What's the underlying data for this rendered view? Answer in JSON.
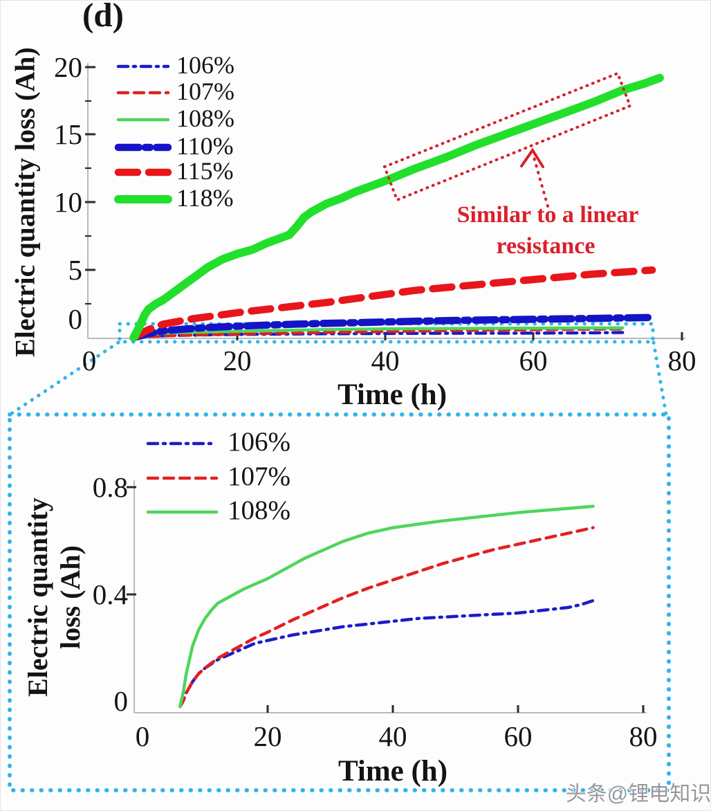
{
  "figure": {
    "panel_label": "(d)",
    "watermark": "头条@锂电知识",
    "watermark_color": "#97979b",
    "annotation": {
      "line1": "Similar to a linear",
      "line2": "resistance",
      "color": "#d9202a"
    },
    "colors": {
      "cyan_zoom_link": "#32b5e6",
      "annotation_red": "#d9202a",
      "axis_spine": "#b9b9bd",
      "tick_mark": "#2b2b2e",
      "text": "#141414"
    }
  },
  "chart_data": [
    {
      "id": "main",
      "type": "line",
      "xlabel": "Time (h)",
      "ylabel": "Electric quantity  loss (Ah)",
      "xlim": [
        0,
        80
      ],
      "ylim": [
        0,
        20
      ],
      "x_tick_labels": [
        "0",
        "20",
        "40",
        "60",
        "80"
      ],
      "y_tick_labels": [
        "20",
        "15",
        "10",
        "5",
        "0"
      ],
      "grid": false,
      "legend_position": "upper-left",
      "series": [
        {
          "name": "106%",
          "color": "#1b1bc8",
          "style": "dashdot",
          "weight": "thin",
          "points": [
            [
              6,
              0
            ],
            [
              6.5,
              0.02
            ],
            [
              7,
              0.05
            ],
            [
              8,
              0.09
            ],
            [
              9,
              0.12
            ],
            [
              10,
              0.14
            ],
            [
              12,
              0.17
            ],
            [
              14,
              0.19
            ],
            [
              16,
              0.21
            ],
            [
              18,
              0.23
            ],
            [
              20,
              0.24
            ],
            [
              24,
              0.26
            ],
            [
              28,
              0.275
            ],
            [
              32,
              0.29
            ],
            [
              36,
              0.3
            ],
            [
              40,
              0.31
            ],
            [
              44,
              0.32
            ],
            [
              48,
              0.325
            ],
            [
              52,
              0.33
            ],
            [
              56,
              0.335
            ],
            [
              60,
              0.34
            ],
            [
              64,
              0.35
            ],
            [
              68,
              0.36
            ],
            [
              72,
              0.385
            ]
          ]
        },
        {
          "name": "107%",
          "color": "#e2201f",
          "style": "dashed",
          "weight": "thin",
          "points": [
            [
              6,
              0
            ],
            [
              6.5,
              0.02
            ],
            [
              7,
              0.05
            ],
            [
              8,
              0.09
            ],
            [
              9,
              0.12
            ],
            [
              10,
              0.14
            ],
            [
              12,
              0.175
            ],
            [
              14,
              0.2
            ],
            [
              16,
              0.225
            ],
            [
              18,
              0.25
            ],
            [
              20,
              0.27
            ],
            [
              24,
              0.315
            ],
            [
              28,
              0.355
            ],
            [
              32,
              0.395
            ],
            [
              36,
              0.43
            ],
            [
              40,
              0.46
            ],
            [
              44,
              0.49
            ],
            [
              48,
              0.52
            ],
            [
              52,
              0.545
            ],
            [
              56,
              0.57
            ],
            [
              60,
              0.59
            ],
            [
              64,
              0.61
            ],
            [
              68,
              0.63
            ],
            [
              72,
              0.65
            ]
          ]
        },
        {
          "name": "108%",
          "color": "#4fd55c",
          "style": "solid",
          "weight": "thin",
          "points": [
            [
              6,
              0
            ],
            [
              6.5,
              0.05
            ],
            [
              7,
              0.12
            ],
            [
              8,
              0.22
            ],
            [
              9,
              0.28
            ],
            [
              10,
              0.32
            ],
            [
              12,
              0.375
            ],
            [
              14,
              0.4
            ],
            [
              16,
              0.425
            ],
            [
              18,
              0.445
            ],
            [
              20,
              0.465
            ],
            [
              24,
              0.515
            ],
            [
              28,
              0.56
            ],
            [
              32,
              0.6
            ],
            [
              36,
              0.63
            ],
            [
              40,
              0.65
            ],
            [
              44,
              0.663
            ],
            [
              48,
              0.675
            ],
            [
              52,
              0.685
            ],
            [
              56,
              0.695
            ],
            [
              60,
              0.705
            ],
            [
              64,
              0.713
            ],
            [
              68,
              0.72
            ],
            [
              72,
              0.728
            ]
          ]
        },
        {
          "name": "110%",
          "color": "#1414c6",
          "style": "dashdot",
          "weight": "thick",
          "points": [
            [
              6,
              0
            ],
            [
              7,
              0.15
            ],
            [
              8,
              0.3
            ],
            [
              10,
              0.5
            ],
            [
              12,
              0.6
            ],
            [
              14,
              0.68
            ],
            [
              16,
              0.75
            ],
            [
              18,
              0.8
            ],
            [
              20,
              0.85
            ],
            [
              24,
              0.93
            ],
            [
              28,
              1.0
            ],
            [
              32,
              1.06
            ],
            [
              36,
              1.11
            ],
            [
              40,
              1.16
            ],
            [
              44,
              1.21
            ],
            [
              48,
              1.26
            ],
            [
              52,
              1.3
            ],
            [
              56,
              1.33
            ],
            [
              60,
              1.36
            ],
            [
              64,
              1.39
            ],
            [
              68,
              1.42
            ],
            [
              72,
              1.46
            ],
            [
              76,
              1.5
            ]
          ]
        },
        {
          "name": "115%",
          "color": "#e8151b",
          "style": "dashed",
          "weight": "thick",
          "points": [
            [
              6,
              0
            ],
            [
              7,
              0.3
            ],
            [
              8,
              0.6
            ],
            [
              10,
              1.0
            ],
            [
              12,
              1.2
            ],
            [
              14,
              1.4
            ],
            [
              16,
              1.55
            ],
            [
              18,
              1.7
            ],
            [
              20,
              1.85
            ],
            [
              24,
              2.1
            ],
            [
              28,
              2.35
            ],
            [
              32,
              2.6
            ],
            [
              36,
              2.9
            ],
            [
              40,
              3.2
            ],
            [
              44,
              3.5
            ],
            [
              48,
              3.7
            ],
            [
              52,
              3.9
            ],
            [
              56,
              4.1
            ],
            [
              60,
              4.3
            ],
            [
              64,
              4.5
            ],
            [
              68,
              4.7
            ],
            [
              72,
              4.85
            ],
            [
              76,
              5.0
            ]
          ]
        },
        {
          "name": "118%",
          "color": "#22df2b",
          "style": "solid",
          "weight": "thick",
          "points": [
            [
              6,
              0
            ],
            [
              6.5,
              0.5
            ],
            [
              7,
              1.1
            ],
            [
              7.5,
              1.7
            ],
            [
              8,
              2.1
            ],
            [
              9,
              2.5
            ],
            [
              10,
              2.8
            ],
            [
              12,
              3.6
            ],
            [
              14,
              4.4
            ],
            [
              16,
              5.2
            ],
            [
              18,
              5.8
            ],
            [
              20,
              6.2
            ],
            [
              22,
              6.5
            ],
            [
              24,
              7.0
            ],
            [
              26,
              7.4
            ],
            [
              27,
              7.6
            ],
            [
              28,
              8.2
            ],
            [
              29,
              8.9
            ],
            [
              30,
              9.3
            ],
            [
              32,
              9.9
            ],
            [
              34,
              10.3
            ],
            [
              36,
              10.8
            ],
            [
              40,
              11.6
            ],
            [
              44,
              12.5
            ],
            [
              48,
              13.3
            ],
            [
              52,
              14.2
            ],
            [
              56,
              15.0
            ],
            [
              60,
              15.8
            ],
            [
              64,
              16.6
            ],
            [
              68,
              17.4
            ],
            [
              72,
              18.3
            ],
            [
              75,
              18.8
            ],
            [
              77,
              19.2
            ]
          ]
        }
      ],
      "annotation_text": "Similar to a linear resistance"
    },
    {
      "id": "inset",
      "type": "line",
      "xlabel": "Time (h)",
      "ylabel_lines": [
        "Electric quantity",
        "loss (Ah)"
      ],
      "xlim": [
        0,
        80
      ],
      "ylim": [
        0,
        0.8
      ],
      "x_tick_labels": [
        "0",
        "20",
        "40",
        "60",
        "80"
      ],
      "y_tick_labels": [
        "0.8",
        "0.4",
        "0"
      ],
      "grid": false,
      "legend_position": "upper-left",
      "series": [
        {
          "name": "106%",
          "color": "#1b1bc8",
          "style": "dashdot",
          "weight": "thin",
          "points": [
            [
              6,
              0
            ],
            [
              6.5,
              0.02
            ],
            [
              7,
              0.05
            ],
            [
              8,
              0.09
            ],
            [
              9,
              0.12
            ],
            [
              10,
              0.14
            ],
            [
              12,
              0.17
            ],
            [
              14,
              0.19
            ],
            [
              16,
              0.21
            ],
            [
              18,
              0.23
            ],
            [
              20,
              0.24
            ],
            [
              22,
              0.25
            ],
            [
              24,
              0.26
            ],
            [
              28,
              0.275
            ],
            [
              32,
              0.29
            ],
            [
              36,
              0.3
            ],
            [
              40,
              0.31
            ],
            [
              44,
              0.32
            ],
            [
              48,
              0.325
            ],
            [
              52,
              0.33
            ],
            [
              56,
              0.335
            ],
            [
              60,
              0.34
            ],
            [
              64,
              0.35
            ],
            [
              68,
              0.36
            ],
            [
              70,
              0.37
            ],
            [
              72,
              0.385
            ]
          ]
        },
        {
          "name": "107%",
          "color": "#e2201f",
          "style": "dashed",
          "weight": "thin",
          "points": [
            [
              6,
              0
            ],
            [
              6.5,
              0.02
            ],
            [
              7,
              0.05
            ],
            [
              8,
              0.09
            ],
            [
              9,
              0.12
            ],
            [
              10,
              0.14
            ],
            [
              12,
              0.175
            ],
            [
              14,
              0.2
            ],
            [
              16,
              0.225
            ],
            [
              18,
              0.25
            ],
            [
              20,
              0.27
            ],
            [
              24,
              0.315
            ],
            [
              28,
              0.355
            ],
            [
              32,
              0.395
            ],
            [
              36,
              0.43
            ],
            [
              40,
              0.46
            ],
            [
              44,
              0.49
            ],
            [
              48,
              0.52
            ],
            [
              52,
              0.545
            ],
            [
              56,
              0.57
            ],
            [
              60,
              0.59
            ],
            [
              64,
              0.61
            ],
            [
              68,
              0.63
            ],
            [
              72,
              0.65
            ]
          ]
        },
        {
          "name": "108%",
          "color": "#4fd55c",
          "style": "solid",
          "weight": "thin",
          "points": [
            [
              6,
              0
            ],
            [
              6.5,
              0.05
            ],
            [
              7,
              0.12
            ],
            [
              8,
              0.22
            ],
            [
              9,
              0.28
            ],
            [
              10,
              0.32
            ],
            [
              11,
              0.35
            ],
            [
              12,
              0.375
            ],
            [
              14,
              0.4
            ],
            [
              16,
              0.425
            ],
            [
              18,
              0.445
            ],
            [
              20,
              0.465
            ],
            [
              22,
              0.49
            ],
            [
              24,
              0.515
            ],
            [
              26,
              0.54
            ],
            [
              28,
              0.56
            ],
            [
              30,
              0.58
            ],
            [
              32,
              0.6
            ],
            [
              34,
              0.615
            ],
            [
              36,
              0.63
            ],
            [
              40,
              0.65
            ],
            [
              44,
              0.663
            ],
            [
              48,
              0.675
            ],
            [
              52,
              0.685
            ],
            [
              56,
              0.695
            ],
            [
              60,
              0.705
            ],
            [
              64,
              0.713
            ],
            [
              68,
              0.72
            ],
            [
              72,
              0.728
            ]
          ]
        }
      ]
    }
  ]
}
